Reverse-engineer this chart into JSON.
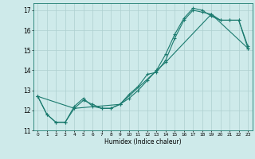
{
  "xlabel": "Humidex (Indice chaleur)",
  "bg_color": "#ceeaea",
  "line_color": "#1a7a6e",
  "grid_color": "#aed0d0",
  "xlim": [
    -0.5,
    23.5
  ],
  "ylim": [
    11,
    17.35
  ],
  "yticks": [
    11,
    12,
    13,
    14,
    15,
    16,
    17
  ],
  "xticks": [
    0,
    1,
    2,
    3,
    4,
    5,
    6,
    7,
    8,
    9,
    10,
    11,
    12,
    13,
    14,
    15,
    16,
    17,
    18,
    19,
    20,
    21,
    22,
    23
  ],
  "line1_x": [
    0,
    1,
    2,
    3,
    4,
    5,
    6,
    7,
    8,
    9,
    10,
    11,
    12,
    13,
    14,
    15,
    16,
    17,
    18,
    19,
    20,
    21,
    22,
    23
  ],
  "line1_y": [
    12.7,
    11.8,
    11.4,
    11.4,
    12.1,
    12.5,
    12.3,
    12.1,
    12.1,
    12.3,
    12.8,
    13.2,
    13.8,
    13.9,
    14.5,
    15.6,
    16.5,
    17.0,
    16.9,
    16.8,
    16.5,
    16.5,
    16.5,
    15.2
  ],
  "line2_x": [
    0,
    1,
    2,
    3,
    4,
    5,
    6,
    7,
    8,
    9,
    10,
    11,
    12,
    13,
    14,
    15,
    16,
    17,
    18,
    19,
    20,
    21,
    22,
    23
  ],
  "line2_y": [
    12.7,
    11.8,
    11.4,
    11.4,
    12.2,
    12.6,
    12.2,
    12.1,
    12.1,
    12.3,
    12.6,
    13.0,
    13.5,
    14.0,
    14.8,
    15.8,
    16.6,
    17.1,
    17.0,
    16.7,
    16.5,
    16.5,
    16.5,
    15.1
  ],
  "line3_x": [
    0,
    4,
    9,
    14,
    19,
    23
  ],
  "line3_y": [
    12.7,
    12.1,
    12.3,
    14.4,
    16.8,
    15.1
  ]
}
